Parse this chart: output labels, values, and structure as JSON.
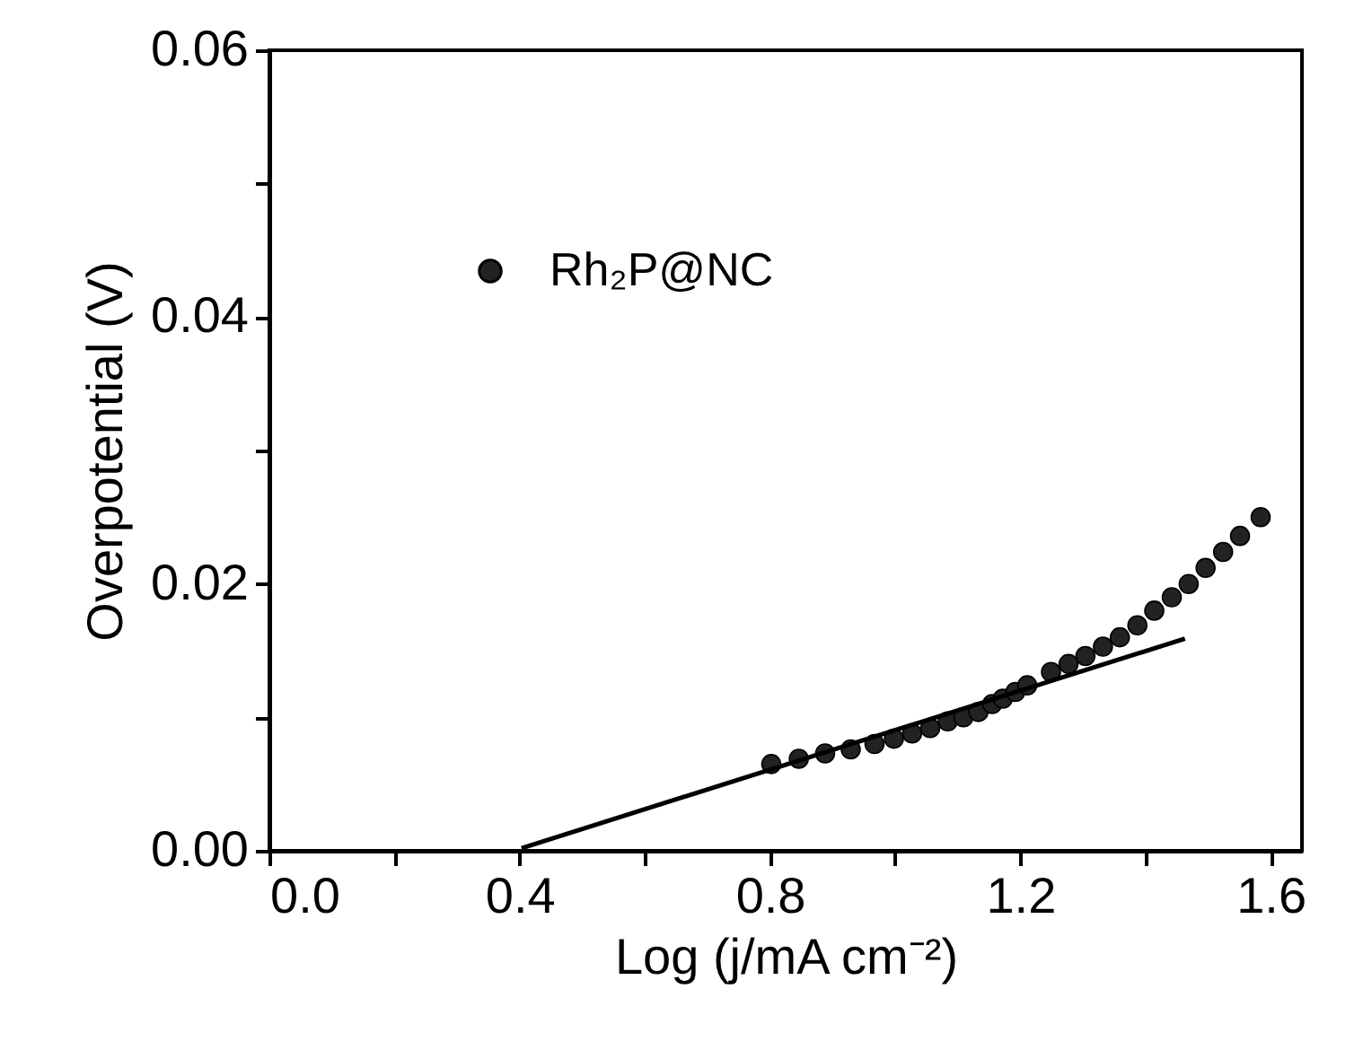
{
  "chart_data": {
    "type": "scatter",
    "xlabel": "Log (j/mA cm⁻²)",
    "ylabel": "Overpotential (V)",
    "xlim": [
      0.0,
      1.65
    ],
    "ylim": [
      0.0,
      0.06
    ],
    "xticks": [
      {
        "value": 0,
        "label": "0.0"
      },
      {
        "value": 0.2,
        "label": null
      },
      0.4,
      {
        "value": 0.6,
        "label": null
      },
      0.8,
      {
        "value": 1.0,
        "label": null
      },
      1.2,
      {
        "value": 1.4,
        "label": null
      },
      1.6
    ],
    "yticks": [
      {
        "value": 0,
        "label": "0.00"
      },
      {
        "value": 0.01,
        "label": null
      },
      0.02,
      {
        "value": 0.03,
        "label": null
      },
      0.04,
      {
        "value": 0.05,
        "label": null
      },
      0.06
    ],
    "grid": false,
    "legend": "top left",
    "series": [
      {
        "name": "Rh₂P@NC",
        "marker": "circle",
        "color": "#222222",
        "x": [
          0.802,
          0.846,
          0.888,
          0.929,
          0.967,
          0.998,
          1.027,
          1.056,
          1.084,
          1.109,
          1.133,
          1.155,
          1.172,
          1.192,
          1.211,
          1.249,
          1.277,
          1.304,
          1.332,
          1.359,
          1.387,
          1.414,
          1.442,
          1.469,
          1.496,
          1.524,
          1.551,
          1.584
        ],
        "values": [
          0.0065,
          0.0069,
          0.0073,
          0.0076,
          0.008,
          0.0084,
          0.0088,
          0.0092,
          0.0097,
          0.01,
          0.0104,
          0.011,
          0.0114,
          0.0119,
          0.0124,
          0.0134,
          0.014,
          0.0146,
          0.0153,
          0.016,
          0.0169,
          0.018,
          0.019,
          0.02,
          0.0212,
          0.0224,
          0.0236,
          0.025
        ]
      },
      {
        "type": "line",
        "color": "#000000",
        "line_style": "solid",
        "x": [
          0.403,
          1.463
        ],
        "values": [
          0.0002,
          0.0159
        ]
      }
    ]
  }
}
